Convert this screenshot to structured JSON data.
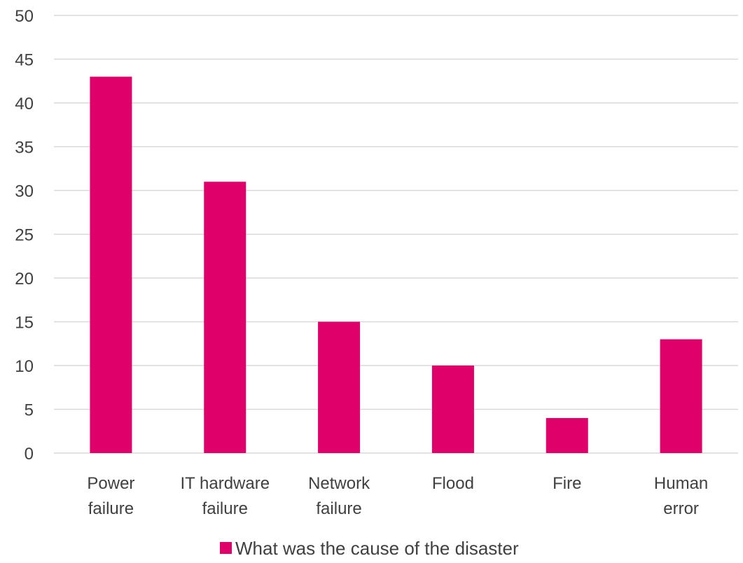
{
  "chart_data": {
    "type": "bar",
    "categories": [
      [
        "Power",
        "failure"
      ],
      [
        "IT hardware",
        "failure"
      ],
      [
        "Network",
        "failure"
      ],
      [
        "Flood"
      ],
      [
        "Fire"
      ],
      [
        "Human",
        "error"
      ]
    ],
    "series": [
      {
        "name": "What was the cause of the disaster",
        "values": [
          43,
          31,
          15,
          10,
          4,
          13
        ],
        "color": "#e0006a"
      }
    ],
    "title": "",
    "xlabel": "",
    "ylabel": "",
    "ylim": [
      0,
      50
    ],
    "yticks": [
      0,
      5,
      10,
      15,
      20,
      25,
      30,
      35,
      40,
      45,
      50
    ],
    "grid": true,
    "legend_position": "bottom",
    "gridline_color": "#d9d9d9",
    "text_color": "#404040"
  }
}
